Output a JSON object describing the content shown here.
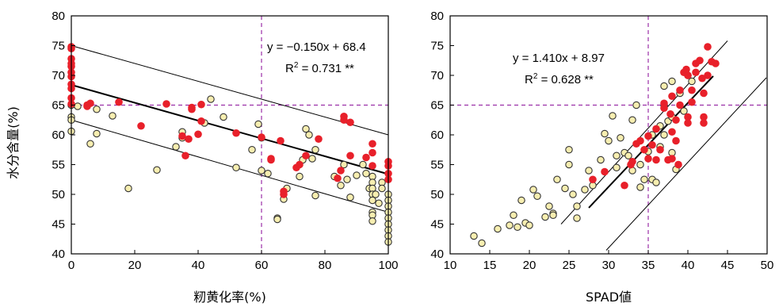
{
  "shared_ylabel": "水分含量(%)",
  "chart_data": [
    {
      "type": "scatter",
      "xlabel": "籾黄化率(%)",
      "ylabel": "水分含量(%)",
      "xlim": [
        0,
        100
      ],
      "ylim": [
        40,
        80
      ],
      "xticks": [
        "0",
        "20",
        "40",
        "60",
        "80",
        "100"
      ],
      "yticks": [
        "40",
        "45",
        "50",
        "55",
        "60",
        "65",
        "70",
        "75",
        "80"
      ],
      "equation": "y = −0.150x + 68.4",
      "r2_prefix": "R",
      "r2_exp": "2",
      "r2_value": " = 0.731 **",
      "regression": {
        "slope": -0.15,
        "intercept": 68.4,
        "x_range": [
          0,
          100
        ]
      },
      "confidence_bands": [
        {
          "x": [
            0,
            100
          ],
          "y": [
            75.0,
            60.0
          ]
        },
        {
          "x": [
            0,
            100
          ],
          "y": [
            62.5,
            47.0
          ]
        }
      ],
      "reference_lines": {
        "x": 60,
        "y": 65
      },
      "colors": {
        "red": "#e8202a",
        "yellow": "#f7eeb0",
        "edge": "#333333",
        "ref": "#9b30a8"
      },
      "series": [
        {
          "marker": "red",
          "points": [
            [
              0,
              74.8
            ],
            [
              0,
              74.5
            ],
            [
              0,
              72.8
            ],
            [
              0,
              72.0
            ],
            [
              0,
              71.5
            ],
            [
              0,
              70.5
            ],
            [
              0,
              69.8
            ],
            [
              0,
              68.5
            ],
            [
              0,
              67.8
            ],
            [
              0,
              66.2
            ],
            [
              0,
              65.2
            ],
            [
              5,
              65.0
            ],
            [
              5,
              64.8
            ],
            [
              6,
              65.3
            ],
            [
              15,
              65.5
            ],
            [
              22,
              61.5
            ],
            [
              30,
              65.2
            ],
            [
              35,
              59.8
            ],
            [
              36,
              56.5
            ],
            [
              37,
              59.3
            ],
            [
              38,
              64.3
            ],
            [
              38,
              64.6
            ],
            [
              40,
              60.1
            ],
            [
              41,
              65.1
            ],
            [
              41,
              62.3
            ],
            [
              52,
              60.3
            ],
            [
              60,
              59.6
            ],
            [
              63,
              55.8
            ],
            [
              63,
              56.0
            ],
            [
              66,
              59.0
            ],
            [
              67,
              50.5
            ],
            [
              67,
              50.0
            ],
            [
              71,
              54.5
            ],
            [
              72,
              55.0
            ],
            [
              74,
              56.5
            ],
            [
              78,
              59.3
            ],
            [
              84,
              52.7
            ],
            [
              85,
              54.0
            ],
            [
              86,
              63.1
            ],
            [
              86,
              62.5
            ],
            [
              88,
              62.1
            ],
            [
              88,
              56.5
            ],
            [
              93,
              56.2
            ],
            [
              95,
              54.8
            ],
            [
              95,
              57.0
            ],
            [
              95,
              58.5
            ],
            [
              100,
              55.5
            ],
            [
              100,
              54.8
            ],
            [
              100,
              53.5
            ],
            [
              100,
              52.5
            ]
          ]
        },
        {
          "marker": "yellow",
          "points": [
            [
              0,
              65.0
            ],
            [
              0,
              63.0
            ],
            [
              0,
              62.5
            ],
            [
              0,
              60.6
            ],
            [
              2,
              64.8
            ],
            [
              6,
              58.5
            ],
            [
              8,
              60.2
            ],
            [
              8,
              64.3
            ],
            [
              13,
              63.2
            ],
            [
              18,
              51.0
            ],
            [
              27,
              54.1
            ],
            [
              33,
              58.0
            ],
            [
              35,
              60.5
            ],
            [
              35,
              59.5
            ],
            [
              42,
              62.0
            ],
            [
              44,
              66.0
            ],
            [
              48,
              63.0
            ],
            [
              52,
              54.5
            ],
            [
              57,
              57.5
            ],
            [
              59,
              61.8
            ],
            [
              60,
              54.0
            ],
            [
              60,
              59.5
            ],
            [
              62,
              53.5
            ],
            [
              65,
              46.0
            ],
            [
              65,
              45.8
            ],
            [
              67,
              49.2
            ],
            [
              68,
              51.0
            ],
            [
              72,
              53.0
            ],
            [
              73,
              55.8
            ],
            [
              74,
              61.0
            ],
            [
              75,
              60.0
            ],
            [
              76,
              56.0
            ],
            [
              77,
              57.5
            ],
            [
              77,
              49.8
            ],
            [
              83,
              53.0
            ],
            [
              85,
              51.5
            ],
            [
              86,
              55.0
            ],
            [
              87,
              52.5
            ],
            [
              88,
              49.5
            ],
            [
              90,
              53.2
            ],
            [
              92,
              55.0
            ],
            [
              93,
              53.5
            ],
            [
              94,
              51.0
            ],
            [
              95,
              53.0
            ],
            [
              95,
              52.0
            ],
            [
              95,
              51.0
            ],
            [
              95,
              50.0
            ],
            [
              95,
              49.0
            ],
            [
              95,
              47.0
            ],
            [
              95,
              46.5
            ],
            [
              95,
              45.5
            ],
            [
              96,
              50.0
            ],
            [
              97,
              48.5
            ],
            [
              98,
              52.0
            ],
            [
              98,
              51.0
            ],
            [
              100,
              50.0
            ],
            [
              100,
              49.0
            ],
            [
              100,
              48.0
            ],
            [
              100,
              47.0
            ],
            [
              100,
              46.0
            ],
            [
              100,
              45.0
            ],
            [
              100,
              44.0
            ],
            [
              100,
              43.0
            ],
            [
              100,
              42.0
            ]
          ]
        }
      ]
    },
    {
      "type": "scatter",
      "xlabel": "SPAD値",
      "ylabel": "",
      "xlim": [
        10,
        50
      ],
      "ylim": [
        40,
        80
      ],
      "xticks": [
        "10",
        "15",
        "20",
        "25",
        "30",
        "35",
        "40",
        "45",
        "50"
      ],
      "yticks": [
        "40",
        "45",
        "50",
        "55",
        "60",
        "65",
        "70",
        "75",
        "80"
      ],
      "equation": "y = 1.410x + 8.97",
      "r2_prefix": "R",
      "r2_exp": "2",
      "r2_value": " = 0.628 **",
      "regression": {
        "slope": 1.41,
        "intercept": 8.97,
        "x_range": [
          27.5,
          43.2
        ]
      },
      "confidence_bands": [
        {
          "x": [
            24,
            45
          ],
          "y": [
            45.0,
            75.8
          ]
        },
        {
          "x": [
            29.7,
            49.9
          ],
          "y": [
            40.6,
            69.6
          ]
        }
      ],
      "reference_lines": {
        "x": 35,
        "y": 65
      },
      "colors": {
        "red": "#e8202a",
        "yellow": "#f7eeb0",
        "edge": "#333333",
        "ref": "#9b30a8"
      },
      "series": [
        {
          "marker": "red",
          "points": [
            [
              28,
              52.5
            ],
            [
              29.5,
              53.8
            ],
            [
              32,
              51.5
            ],
            [
              32.8,
              55.0
            ],
            [
              33,
              55.5
            ],
            [
              33.5,
              58.5
            ],
            [
              34,
              59.0
            ],
            [
              34.5,
              57.5
            ],
            [
              35,
              56.0
            ],
            [
              35,
              59.8
            ],
            [
              35.5,
              58.3
            ],
            [
              36,
              55.8
            ],
            [
              36,
              61.0
            ],
            [
              36.5,
              57.5
            ],
            [
              37,
              64.5
            ],
            [
              37,
              65.3
            ],
            [
              37.5,
              55.8
            ],
            [
              37.8,
              63.5
            ],
            [
              38,
              60.5
            ],
            [
              38,
              56.0
            ],
            [
              38.5,
              62.5
            ],
            [
              38.5,
              59.0
            ],
            [
              38,
              66.5
            ],
            [
              38.8,
              55.0
            ],
            [
              39,
              67.5
            ],
            [
              39,
              65.0
            ],
            [
              39.5,
              70.5
            ],
            [
              39.8,
              71.0
            ],
            [
              40,
              63.0
            ],
            [
              40,
              62.0
            ],
            [
              40,
              70.0
            ],
            [
              40.5,
              67.5
            ],
            [
              40.5,
              65.5
            ],
            [
              41,
              72.0
            ],
            [
              41,
              70.5
            ],
            [
              41.5,
              72.5
            ],
            [
              41.8,
              69.5
            ],
            [
              42,
              62.0
            ],
            [
              42,
              63.0
            ],
            [
              42,
              67.0
            ],
            [
              42.5,
              74.8
            ],
            [
              42.5,
              70.0
            ],
            [
              43,
              72.3
            ],
            [
              43.5,
              72.0
            ]
          ]
        },
        {
          "marker": "yellow",
          "points": [
            [
              13,
              43.0
            ],
            [
              14,
              41.8
            ],
            [
              16,
              44.2
            ],
            [
              17.5,
              44.8
            ],
            [
              18,
              46.5
            ],
            [
              18.5,
              44.5
            ],
            [
              19,
              49.0
            ],
            [
              19.5,
              45.2
            ],
            [
              20,
              44.8
            ],
            [
              20.5,
              50.8
            ],
            [
              21,
              49.7
            ],
            [
              22,
              46.2
            ],
            [
              22.5,
              48.0
            ],
            [
              23,
              46.8
            ],
            [
              23,
              46.5
            ],
            [
              23.5,
              52.5
            ],
            [
              24.5,
              51.0
            ],
            [
              25,
              55.0
            ],
            [
              25,
              57.5
            ],
            [
              25.5,
              50.0
            ],
            [
              26,
              48.0
            ],
            [
              26,
              46.0
            ],
            [
              27,
              50.8
            ],
            [
              27.5,
              54.0
            ],
            [
              28,
              51.5
            ],
            [
              29,
              55.8
            ],
            [
              29.5,
              60.2
            ],
            [
              30,
              59.0
            ],
            [
              30.5,
              63.2
            ],
            [
              31,
              54.5
            ],
            [
              31,
              56.5
            ],
            [
              31.5,
              59.5
            ],
            [
              32,
              57.0
            ],
            [
              32.5,
              56.5
            ],
            [
              33,
              62.5
            ],
            [
              33,
              54.0
            ],
            [
              33.5,
              65.0
            ],
            [
              34,
              55.0
            ],
            [
              34,
              51.2
            ],
            [
              34.5,
              52.5
            ],
            [
              35,
              57.2
            ],
            [
              35.5,
              60.0
            ],
            [
              35.5,
              52.5
            ],
            [
              36,
              52.0
            ],
            [
              36.5,
              58.0
            ],
            [
              36.5,
              61.5
            ],
            [
              37,
              60.0
            ],
            [
              37,
              68.2
            ],
            [
              37,
              65.0
            ],
            [
              37.5,
              62.3
            ],
            [
              38,
              69.0
            ],
            [
              38,
              63.0
            ],
            [
              38,
              57.0
            ],
            [
              38.5,
              54.2
            ],
            [
              39,
              67.0
            ],
            [
              39.5,
              64.0
            ],
            [
              40,
              70.0
            ],
            [
              40.5,
              69.0
            ]
          ]
        }
      ]
    }
  ]
}
